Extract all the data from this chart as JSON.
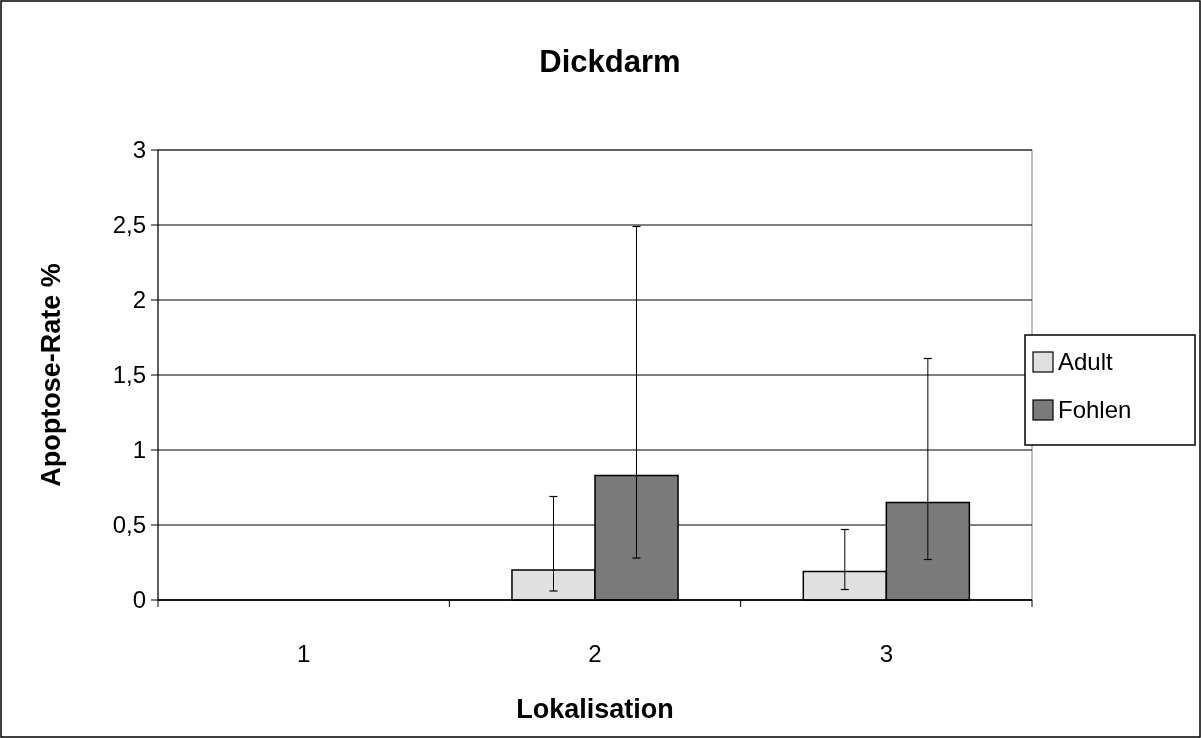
{
  "chart_data": {
    "type": "bar",
    "title": "Dickdarm",
    "xlabel": "Lokalisation",
    "ylabel": "Apoptose-Rate %",
    "categories": [
      "1",
      "2",
      "3"
    ],
    "series": [
      {
        "name": "Adult",
        "color": "#e0e0e0",
        "values": [
          null,
          0.2,
          0.19
        ],
        "errors": [
          null,
          [
            0.06,
            0.69
          ],
          [
            0.07,
            0.47
          ]
        ]
      },
      {
        "name": "Fohlen",
        "color": "#7a7a7a",
        "values": [
          null,
          0.83,
          0.65
        ],
        "errors": [
          null,
          [
            0.28,
            2.49
          ],
          [
            0.27,
            1.61
          ]
        ]
      }
    ],
    "ylim": [
      0,
      3
    ],
    "yticks": [
      0,
      {
        "value": 0.5,
        "label": "0,5"
      },
      1,
      {
        "value": 1.5,
        "label": "1,5"
      },
      2,
      {
        "value": 2.5,
        "label": "2,5"
      },
      3
    ],
    "grid": "y",
    "legend": "right"
  }
}
